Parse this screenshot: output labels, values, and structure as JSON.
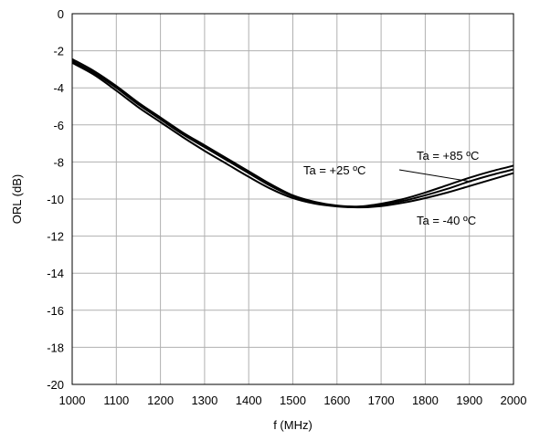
{
  "chart_data": {
    "type": "line",
    "title": "",
    "xlabel": "f (MHz)",
    "ylabel": "ORL (dB)",
    "xlim": [
      1000,
      2000
    ],
    "ylim": [
      -20,
      0
    ],
    "x_ticks": [
      "1000",
      "1100",
      "1200",
      "1300",
      "1400",
      "1500",
      "1600",
      "1700",
      "1800",
      "1900",
      "2000"
    ],
    "y_ticks": [
      "0",
      "-2",
      "-4",
      "-6",
      "-8",
      "-10",
      "-12",
      "-14",
      "-16",
      "-18",
      "-20"
    ],
    "grid": true,
    "legend": "none",
    "line_color": "#000000",
    "series": [
      {
        "name": "Ta = +85 ºC",
        "x": [
          1000,
          1050,
          1100,
          1150,
          1200,
          1250,
          1300,
          1350,
          1400,
          1450,
          1500,
          1550,
          1600,
          1650,
          1700,
          1750,
          1800,
          1850,
          1900,
          1950,
          2000
        ],
        "values": [
          -2.45,
          -3.1,
          -3.9,
          -4.8,
          -5.6,
          -6.4,
          -7.1,
          -7.8,
          -8.5,
          -9.2,
          -9.8,
          -10.15,
          -10.35,
          -10.4,
          -10.25,
          -10.0,
          -9.65,
          -9.25,
          -8.85,
          -8.5,
          -8.2
        ]
      },
      {
        "name": "Ta = +25 ºC",
        "x": [
          1000,
          1050,
          1100,
          1150,
          1200,
          1250,
          1300,
          1350,
          1400,
          1450,
          1500,
          1550,
          1600,
          1650,
          1700,
          1750,
          1800,
          1850,
          1900,
          1950,
          2000
        ],
        "values": [
          -2.55,
          -3.2,
          -4.0,
          -4.9,
          -5.7,
          -6.5,
          -7.2,
          -7.9,
          -8.6,
          -9.3,
          -9.85,
          -10.2,
          -10.38,
          -10.42,
          -10.3,
          -10.1,
          -9.8,
          -9.45,
          -9.05,
          -8.7,
          -8.4
        ]
      },
      {
        "name": "Ta = -40 ºC",
        "x": [
          1000,
          1050,
          1100,
          1150,
          1200,
          1250,
          1300,
          1350,
          1400,
          1450,
          1500,
          1550,
          1600,
          1650,
          1700,
          1750,
          1800,
          1850,
          1900,
          1950,
          2000
        ],
        "values": [
          -2.65,
          -3.3,
          -4.15,
          -5.05,
          -5.85,
          -6.65,
          -7.4,
          -8.1,
          -8.8,
          -9.45,
          -9.95,
          -10.25,
          -10.4,
          -10.45,
          -10.38,
          -10.2,
          -9.95,
          -9.65,
          -9.3,
          -8.95,
          -8.6
        ]
      }
    ],
    "annotations": [
      {
        "text": "Ta = +85  ºC",
        "series": "Ta = +85 ºC"
      },
      {
        "text": "Ta = +25  ºC",
        "series": "Ta = +25 ºC"
      },
      {
        "text": "Ta = -40  ºC",
        "series": "Ta = -40 ºC"
      }
    ]
  }
}
